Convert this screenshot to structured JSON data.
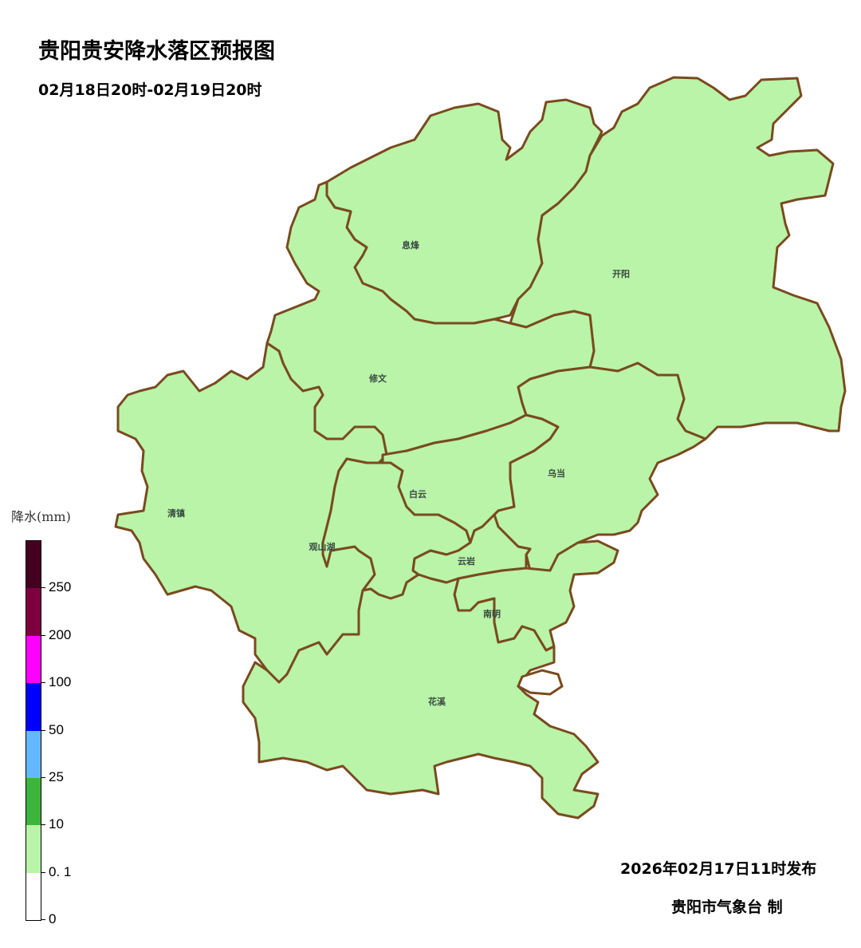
{
  "title": "贵阳贵安降水落区预报图",
  "subtitle": "02月18日20时-02月19日20时",
  "colors": {
    "fill": "#b9f4a9",
    "border": "#7a4a1e",
    "label": "#3a4a40"
  },
  "districts": [
    {
      "name": "息烽",
      "level": "0.1-10"
    },
    {
      "name": "开阳",
      "level": "0.1-10"
    },
    {
      "name": "修文",
      "level": "0.1-10"
    },
    {
      "name": "清镇",
      "level": "0.1-10"
    },
    {
      "name": "观山湖",
      "level": "0.1-10"
    },
    {
      "name": "白云",
      "level": "0.1-10"
    },
    {
      "name": "乌当",
      "level": "0.1-10"
    },
    {
      "name": "云岩",
      "level": "0.1-10"
    },
    {
      "name": "南明",
      "level": "0.1-10"
    },
    {
      "name": "花溪",
      "level": "0.1-10"
    }
  ],
  "legend": {
    "title": "降水(mm)",
    "ticks": [
      "0",
      "0. 1",
      "10",
      "25",
      "50",
      "100",
      "200",
      "250"
    ],
    "colors": [
      "#ffffff",
      "#b9f4a9",
      "#3db53d",
      "#63b8ff",
      "#0000fe",
      "#fe00fe",
      "#7f0040",
      "#430021"
    ]
  },
  "footer": {
    "issued": "2026年02月17日11时发布",
    "org": "贵阳市气象台  制"
  }
}
